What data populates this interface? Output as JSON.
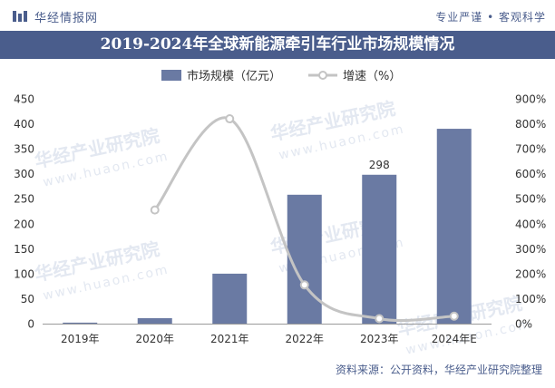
{
  "header": {
    "brand": "华经情报网",
    "slogan": "专业严谨 • 客观科学"
  },
  "footer": {
    "source": "资料来源：公开资料，华经产业研究院整理"
  },
  "watermark": {
    "text": "华经产业研究院",
    "url": "www.huaon.com"
  },
  "chart_data": {
    "type": "bar",
    "title": "2019-2024年全球新能源牵引车行业市场规模情况",
    "categories": [
      "2019年",
      "2020年",
      "2021年",
      "2022年",
      "2023年",
      "2024年E"
    ],
    "series": [
      {
        "name": "市场规模（亿元）",
        "type": "bar",
        "axis": "left",
        "values": [
          2,
          11,
          100,
          258,
          298,
          390
        ],
        "data_labels": [
          null,
          null,
          null,
          null,
          "298",
          null
        ]
      },
      {
        "name": "增速（%）",
        "type": "line",
        "axis": "right",
        "values": [
          null,
          455,
          820,
          155,
          20,
          30
        ]
      }
    ],
    "y_left": {
      "min": 0,
      "max": 450,
      "step": 50,
      "ticks": [
        "0",
        "50",
        "100",
        "150",
        "200",
        "250",
        "300",
        "350",
        "400",
        "450"
      ]
    },
    "y_right": {
      "min": 0,
      "max": 900,
      "step": 100,
      "ticks": [
        "0%",
        "100%",
        "200%",
        "300%",
        "400%",
        "500%",
        "600%",
        "700%",
        "800%",
        "900%"
      ]
    },
    "grid": false,
    "legend_position": "top-center",
    "colors": {
      "bar": "#6a7aa3",
      "line": "#c4c4c4",
      "title_bg": "#4a5d8c",
      "text": "#333333"
    }
  }
}
